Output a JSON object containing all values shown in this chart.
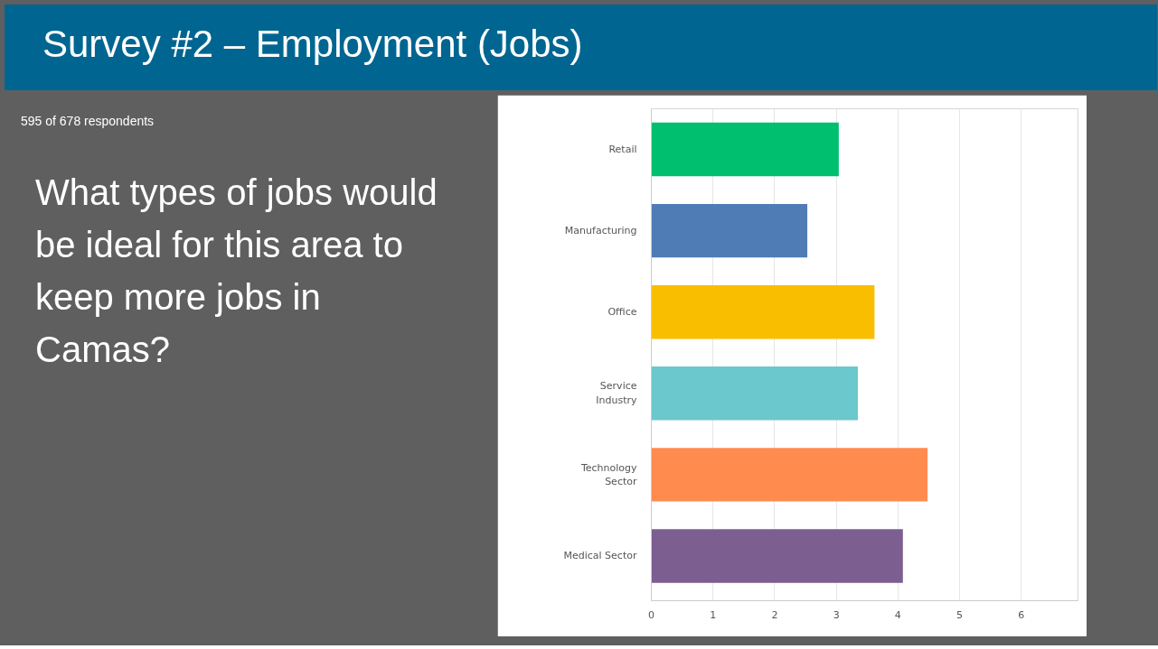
{
  "chart_data": {
    "type": "bar",
    "orientation": "horizontal",
    "title": "Survey #2 – Employment (Jobs)",
    "annotations": [
      "595 of 678 respondents",
      "What types of jobs would be ideal for this area to keep more jobs in Camas?"
    ],
    "categories": [
      "Retail",
      "Manufacturing",
      "Office",
      "Service Industry",
      "Technology Sector",
      "Medical Sector"
    ],
    "values": [
      3.04,
      2.53,
      3.62,
      3.35,
      4.48,
      4.08
    ],
    "colors": [
      "#00bf6f",
      "#507cb6",
      "#f9be00",
      "#6bc8cd",
      "#ff8b4f",
      "#7d5e90"
    ],
    "xlim": [
      0,
      6.92
    ],
    "xticks": [
      0,
      1,
      2,
      3,
      4,
      5,
      6
    ],
    "grid": "x"
  }
}
